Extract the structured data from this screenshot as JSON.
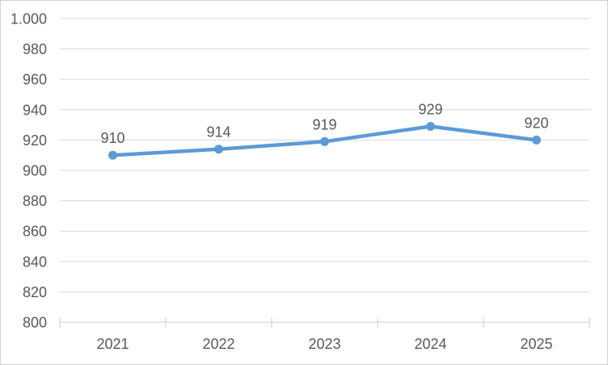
{
  "chart_data": {
    "type": "line",
    "title": "",
    "xlabel": "",
    "ylabel": "",
    "categories": [
      "2021",
      "2022",
      "2023",
      "2024",
      "2025"
    ],
    "series": [
      {
        "name": "series-1",
        "values": [
          910,
          914,
          919,
          929,
          920
        ],
        "data_labels": [
          "910",
          "914",
          "919",
          "929",
          "920"
        ],
        "color": "#5b9bd5"
      }
    ],
    "ylim": [
      800,
      1000
    ],
    "ytick_step": 20,
    "y_tick_labels": [
      "800",
      "820",
      "840",
      "860",
      "880",
      "900",
      "920",
      "940",
      "960",
      "980",
      "1.000"
    ],
    "grid": "horizontal",
    "legend_position": "none",
    "colors": {
      "line": "#5b9bd5",
      "marker": "#5b9bd5",
      "gridline": "#d9d9d9",
      "axis": "#d6d6d6",
      "text": "#595959",
      "background": "#ffffff",
      "border": "#d3d3d3"
    }
  }
}
